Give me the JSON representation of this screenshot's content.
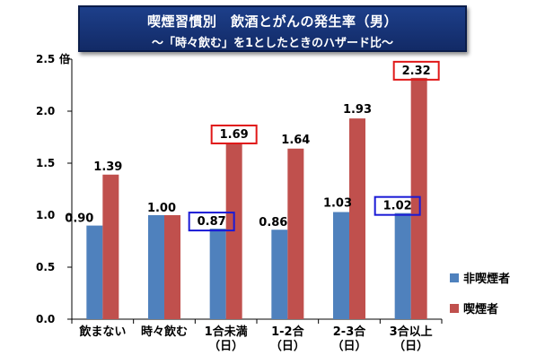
{
  "title": {
    "line1": "喫煙習慣別　飲酒とがんの発生率（男）",
    "line2": "～「時々飲む」を1としたときのハザード比～"
  },
  "chart_data": {
    "type": "bar",
    "categories": [
      [
        "飲まない"
      ],
      [
        "時々飲む"
      ],
      [
        "1合未満",
        "（日）"
      ],
      [
        "1-2合",
        "（日）"
      ],
      [
        "2-3合",
        "（日）"
      ],
      [
        "3合以上",
        "（日）"
      ]
    ],
    "series": [
      {
        "name": "非喫煙者",
        "color": "#4f81bd",
        "values": [
          0.9,
          1.0,
          0.87,
          0.86,
          1.03,
          1.02
        ],
        "value_labels": [
          "0.90",
          "1.00",
          "0.87",
          "0.86",
          "1.03",
          "1.02"
        ],
        "boxed": [
          false,
          false,
          true,
          false,
          false,
          true
        ],
        "box_color": "#1a1ad6"
      },
      {
        "name": "喫煙者",
        "color": "#c0504d",
        "values": [
          1.39,
          1.0,
          1.69,
          1.64,
          1.93,
          2.32
        ],
        "value_labels": [
          "1.39",
          "",
          "1.69",
          "1.64",
          "1.93",
          "2.32"
        ],
        "boxed": [
          false,
          false,
          true,
          false,
          false,
          true
        ],
        "box_color": "#e01818"
      }
    ],
    "y_ticks": [
      "0.0",
      "0.5",
      "1.0",
      "1.5",
      "2.0",
      "2.5"
    ],
    "y_unit": "倍",
    "ylim": [
      0,
      2.5
    ],
    "legend_position": "right"
  }
}
